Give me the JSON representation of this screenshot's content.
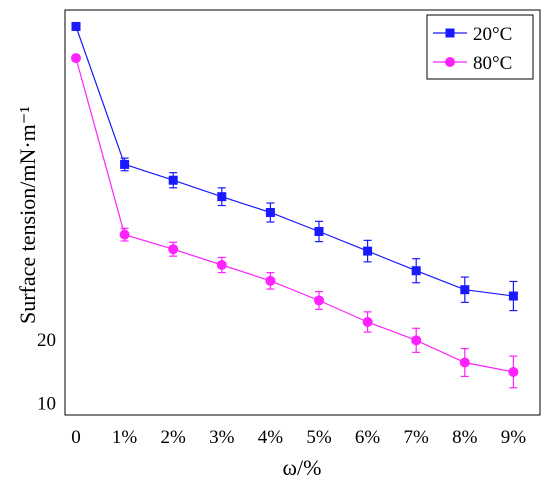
{
  "chart_data": {
    "type": "line",
    "title": "",
    "xlabel": "ω/%",
    "ylabel": "Surface tension/mN·m⁻¹",
    "categories": [
      "0",
      "1%",
      "2%",
      "3%",
      "4%",
      "5%",
      "6%",
      "7%",
      "8%",
      "9%"
    ],
    "y_tick_labels": [
      "10",
      "20"
    ],
    "y_tick_values": [
      10,
      20
    ],
    "ylim": [
      8,
      72
    ],
    "grid": false,
    "legend_position": "top-right",
    "series": [
      {
        "name": "20°C",
        "color": "#1a1aff",
        "marker": "square",
        "values": [
          69.4,
          47.6,
          45.1,
          42.5,
          40.0,
          37.0,
          33.9,
          30.8,
          27.8,
          26.8
        ],
        "errors": [
          0.4,
          1.0,
          1.2,
          1.4,
          1.5,
          1.6,
          1.7,
          1.9,
          2.0,
          2.3
        ]
      },
      {
        "name": "80°C",
        "color": "#ff22ff",
        "marker": "circle",
        "values": [
          64.4,
          36.5,
          34.2,
          31.7,
          29.2,
          26.1,
          22.7,
          19.8,
          16.3,
          14.8
        ],
        "errors": [
          0.4,
          1.0,
          1.1,
          1.2,
          1.3,
          1.4,
          1.6,
          1.9,
          2.2,
          2.5
        ]
      }
    ]
  }
}
